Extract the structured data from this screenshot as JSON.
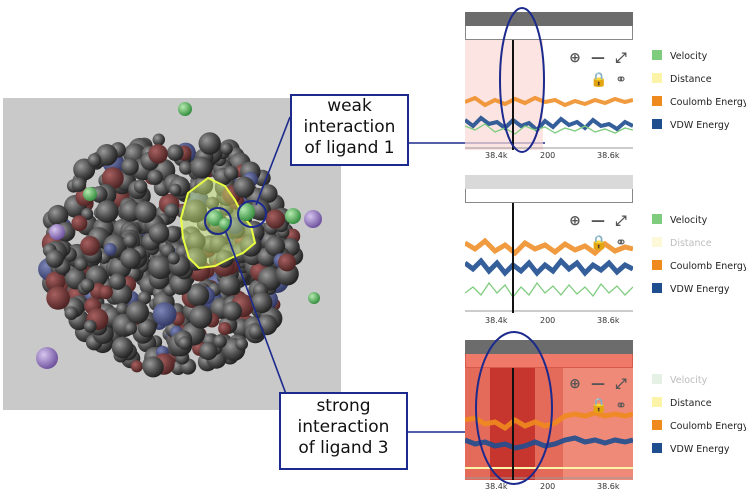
{
  "callouts": {
    "weak": "weak\ninteraction\nof ligand 1",
    "strong": "strong\ninteraction\nof ligand 3"
  },
  "colors": {
    "velocity": "#7fcc7f",
    "distance": "#fbf3a8",
    "coulomb": "#ee8a1e",
    "vdw": "#1f4e8f",
    "annotation": "#1b2a8c",
    "highlight": "#d8f25a"
  },
  "panels": [
    {
      "legend": [
        {
          "label": "Velocity",
          "swatch": "#7fcc7f",
          "dim": false
        },
        {
          "label": "Distance",
          "swatch": "#fbf3a8",
          "dim": false
        },
        {
          "label": "Coulomb Energy",
          "swatch": "#ee8a1e",
          "dim": false
        },
        {
          "label": "VDW Energy",
          "swatch": "#1f4e8f",
          "dim": false
        }
      ],
      "ticks": [
        "38.4k",
        "200",
        "38.6k"
      ]
    },
    {
      "legend": [
        {
          "label": "Velocity",
          "swatch": "#7fcc7f",
          "dim": false
        },
        {
          "label": "Distance",
          "swatch": "#fdf8d8",
          "dim": true
        },
        {
          "label": "Coulomb Energy",
          "swatch": "#ee8a1e",
          "dim": false
        },
        {
          "label": "VDW Energy",
          "swatch": "#1f4e8f",
          "dim": false
        }
      ],
      "ticks": [
        "38.4k",
        "200",
        "38.6k"
      ]
    },
    {
      "legend": [
        {
          "label": "Velocity",
          "swatch": "#e5f1e5",
          "dim": true
        },
        {
          "label": "Distance",
          "swatch": "#fbf3a8",
          "dim": false
        },
        {
          "label": "Coulomb Energy",
          "swatch": "#ee8a1e",
          "dim": false
        },
        {
          "label": "VDW Energy",
          "swatch": "#1f4e8f",
          "dim": false
        }
      ],
      "ticks": [
        "38.4k",
        "200",
        "38.6k"
      ]
    }
  ],
  "toolbar_icons": [
    "zoom-icon",
    "minus-icon",
    "expand-icon",
    "lock-icon",
    "link-icon"
  ]
}
